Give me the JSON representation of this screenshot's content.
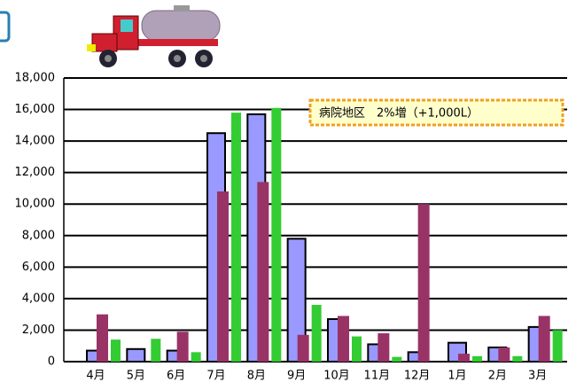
{
  "chart_data": {
    "type": "bar",
    "categories": [
      "4月",
      "5月",
      "6月",
      "7月",
      "8月",
      "9月",
      "10月",
      "11月",
      "12月",
      "1月",
      "2月",
      "3月"
    ],
    "series": [
      {
        "color": "#9999ff",
        "values": [
          700,
          800,
          700,
          14500,
          15700,
          7800,
          2700,
          1100,
          600,
          1200,
          900,
          2200
        ]
      },
      {
        "color": "#993366",
        "values": [
          3000,
          0,
          1900,
          10800,
          11400,
          1700,
          2900,
          1800,
          10000,
          500,
          900,
          2900
        ]
      },
      {
        "color": "#33cc33",
        "values": [
          1400,
          1450,
          600,
          15800,
          16100,
          3600,
          1600,
          300,
          0,
          350,
          350,
          2000
        ]
      }
    ],
    "ylim": [
      0,
      18000
    ],
    "yticks": [
      0,
      {
        "value": 2000,
        "label": "2,000"
      },
      {
        "value": 4000,
        "label": "4,000"
      },
      {
        "value": 6000,
        "label": "6,000"
      },
      {
        "value": 8000,
        "label": "8,000"
      },
      {
        "value": 10000,
        "label": "10,000"
      },
      {
        "value": 12000,
        "label": "12,000"
      },
      {
        "value": 14000,
        "label": "14,000"
      },
      {
        "value": 16000,
        "label": "16,000"
      },
      {
        "value": 18000,
        "label": "18,000"
      }
    ],
    "grid": true,
    "annotation": "病院地区　2%増（+1,000L）"
  }
}
